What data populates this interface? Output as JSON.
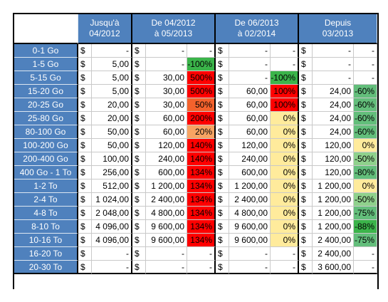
{
  "colors": {
    "header_bg": "#4f81bd",
    "header_text": "#ffffff",
    "red": "#ff0000",
    "orange_dark": "#f4622c",
    "orange_mid": "#f8a463",
    "orange_light": "#fcc98a",
    "yellow": "#ffeb9c",
    "green_light": "#8fd18c",
    "green_mid": "#63be7b",
    "green_dark": "#3bb44a",
    "white": "#ffffff"
  },
  "headers": {
    "col1": "Jusqu'à\n04/2012",
    "col2": "De 04/2012\nà 05/2013",
    "col3": "De 06/2013\nà 02/2014",
    "col4": "Depuis\n03/2013"
  },
  "rows": [
    {
      "label": "0-1 Go",
      "p1": {
        "cur": "$",
        "amt": "-"
      },
      "p2": {
        "cur": "$",
        "amt": "-",
        "pct": "-",
        "color": "white"
      },
      "p3": {
        "cur": "$",
        "amt": "-",
        "pct": "-",
        "color": "white"
      },
      "p4": {
        "cur": "$",
        "amt": "-",
        "pct": "-",
        "color": "white"
      }
    },
    {
      "label": "1-5 Go",
      "p1": {
        "cur": "$",
        "amt": "5,00"
      },
      "p2": {
        "cur": "$",
        "amt": "-",
        "pct": "-100%",
        "color": "green_dark"
      },
      "p3": {
        "cur": "$",
        "amt": "-",
        "pct": "-",
        "color": "white"
      },
      "p4": {
        "cur": "$",
        "amt": "-",
        "pct": "-",
        "color": "white"
      }
    },
    {
      "label": "5-15 Go",
      "p1": {
        "cur": "$",
        "amt": "5,00"
      },
      "p2": {
        "cur": "$",
        "amt": "30,00",
        "pct": "500%",
        "color": "red"
      },
      "p3": {
        "cur": "$",
        "amt": "-",
        "pct": "-100%",
        "color": "green_dark"
      },
      "p4": {
        "cur": "$",
        "amt": "-",
        "pct": "-",
        "color": "white"
      }
    },
    {
      "label": "15-20 Go",
      "p1": {
        "cur": "$",
        "amt": "5,00"
      },
      "p2": {
        "cur": "$",
        "amt": "30,00",
        "pct": "500%",
        "color": "red"
      },
      "p3": {
        "cur": "$",
        "amt": "60,00",
        "pct": "100%",
        "color": "red"
      },
      "p4": {
        "cur": "$",
        "amt": "24,00",
        "pct": "-60%",
        "color": "green_mid"
      }
    },
    {
      "label": "20-25 Go",
      "p1": {
        "cur": "$",
        "amt": "20,00"
      },
      "p2": {
        "cur": "$",
        "amt": "30,00",
        "pct": "50%",
        "color": "orange_dark"
      },
      "p3": {
        "cur": "$",
        "amt": "60,00",
        "pct": "100%",
        "color": "red"
      },
      "p4": {
        "cur": "$",
        "amt": "24,00",
        "pct": "-60%",
        "color": "green_mid"
      }
    },
    {
      "label": "25-80 Go",
      "p1": {
        "cur": "$",
        "amt": "20,00"
      },
      "p2": {
        "cur": "$",
        "amt": "60,00",
        "pct": "200%",
        "color": "red"
      },
      "p3": {
        "cur": "$",
        "amt": "60,00",
        "pct": "0%",
        "color": "yellow"
      },
      "p4": {
        "cur": "$",
        "amt": "24,00",
        "pct": "-60%",
        "color": "green_mid"
      }
    },
    {
      "label": "80-100 Go",
      "p1": {
        "cur": "$",
        "amt": "50,00"
      },
      "p2": {
        "cur": "$",
        "amt": "60,00",
        "pct": "20%",
        "color": "orange_mid"
      },
      "p3": {
        "cur": "$",
        "amt": "60,00",
        "pct": "0%",
        "color": "yellow"
      },
      "p4": {
        "cur": "$",
        "amt": "24,00",
        "pct": "-60%",
        "color": "green_mid"
      }
    },
    {
      "label": "100-200 Go",
      "p1": {
        "cur": "$",
        "amt": "50,00"
      },
      "p2": {
        "cur": "$",
        "amt": "120,00",
        "pct": "140%",
        "color": "red"
      },
      "p3": {
        "cur": "$",
        "amt": "120,00",
        "pct": "0%",
        "color": "yellow"
      },
      "p4": {
        "cur": "$",
        "amt": "120,00",
        "pct": "0%",
        "color": "yellow"
      }
    },
    {
      "label": "200-400 Go",
      "p1": {
        "cur": "$",
        "amt": "100,00"
      },
      "p2": {
        "cur": "$",
        "amt": "240,00",
        "pct": "140%",
        "color": "red"
      },
      "p3": {
        "cur": "$",
        "amt": "240,00",
        "pct": "0%",
        "color": "yellow"
      },
      "p4": {
        "cur": "$",
        "amt": "120,00",
        "pct": "-50%",
        "color": "green_light"
      }
    },
    {
      "label": "400 Go - 1 To",
      "p1": {
        "cur": "$",
        "amt": "256,00"
      },
      "p2": {
        "cur": "$",
        "amt": "600,00",
        "pct": "134%",
        "color": "red"
      },
      "p3": {
        "cur": "$",
        "amt": "600,00",
        "pct": "0%",
        "color": "yellow"
      },
      "p4": {
        "cur": "$",
        "amt": "120,00",
        "pct": "-80%",
        "color": "green_mid"
      }
    },
    {
      "label": "1-2 To",
      "p1": {
        "cur": "$",
        "amt": "512,00"
      },
      "p2": {
        "cur": "$",
        "amt": "1 200,00",
        "pct": "134%",
        "color": "red"
      },
      "p3": {
        "cur": "$",
        "amt": "1 200,00",
        "pct": "0%",
        "color": "yellow"
      },
      "p4": {
        "cur": "$",
        "amt": "1 200,00",
        "pct": "0%",
        "color": "yellow"
      }
    },
    {
      "label": "2-4 To",
      "p1": {
        "cur": "$",
        "amt": "1 024,00"
      },
      "p2": {
        "cur": "$",
        "amt": "2 400,00",
        "pct": "134%",
        "color": "red"
      },
      "p3": {
        "cur": "$",
        "amt": "2 400,00",
        "pct": "0%",
        "color": "yellow"
      },
      "p4": {
        "cur": "$",
        "amt": "1 200,00",
        "pct": "-50%",
        "color": "green_light"
      }
    },
    {
      "label": "4-8 To",
      "p1": {
        "cur": "$",
        "amt": "2 048,00"
      },
      "p2": {
        "cur": "$",
        "amt": "4 800,00",
        "pct": "134%",
        "color": "red"
      },
      "p3": {
        "cur": "$",
        "amt": "4 800,00",
        "pct": "0%",
        "color": "yellow"
      },
      "p4": {
        "cur": "$",
        "amt": "1 200,00",
        "pct": "-75%",
        "color": "green_mid"
      }
    },
    {
      "label": "8-10 To",
      "p1": {
        "cur": "$",
        "amt": "4 096,00"
      },
      "p2": {
        "cur": "$",
        "amt": "9 600,00",
        "pct": "134%",
        "color": "red"
      },
      "p3": {
        "cur": "$",
        "amt": "9 600,00",
        "pct": "0%",
        "color": "yellow"
      },
      "p4": {
        "cur": "$",
        "amt": "1 200,00",
        "pct": "-88%",
        "color": "green_dark"
      }
    },
    {
      "label": "10-16 To",
      "p1": {
        "cur": "$",
        "amt": "4 096,00"
      },
      "p2": {
        "cur": "$",
        "amt": "9 600,00",
        "pct": "134%",
        "color": "red"
      },
      "p3": {
        "cur": "$",
        "amt": "9 600,00",
        "pct": "0%",
        "color": "yellow"
      },
      "p4": {
        "cur": "$",
        "amt": "2 400,00",
        "pct": "-75%",
        "color": "green_mid"
      }
    },
    {
      "label": "16-20 To",
      "p1": {
        "cur": "$",
        "amt": "-"
      },
      "p2": {
        "cur": "$",
        "amt": "-",
        "pct": "-",
        "color": "white"
      },
      "p3": {
        "cur": "$",
        "amt": "-",
        "pct": "-",
        "color": "white"
      },
      "p4": {
        "cur": "$",
        "amt": "2 400,00",
        "pct": "-",
        "color": "white"
      }
    },
    {
      "label": "20-30 To",
      "p1": {
        "cur": "$",
        "amt": "-"
      },
      "p2": {
        "cur": "$",
        "amt": "-",
        "pct": "-",
        "color": "white"
      },
      "p3": {
        "cur": "$",
        "amt": "-",
        "pct": "-",
        "color": "white"
      },
      "p4": {
        "cur": "$",
        "amt": "3 600,00",
        "pct": "-",
        "color": "white"
      }
    }
  ]
}
